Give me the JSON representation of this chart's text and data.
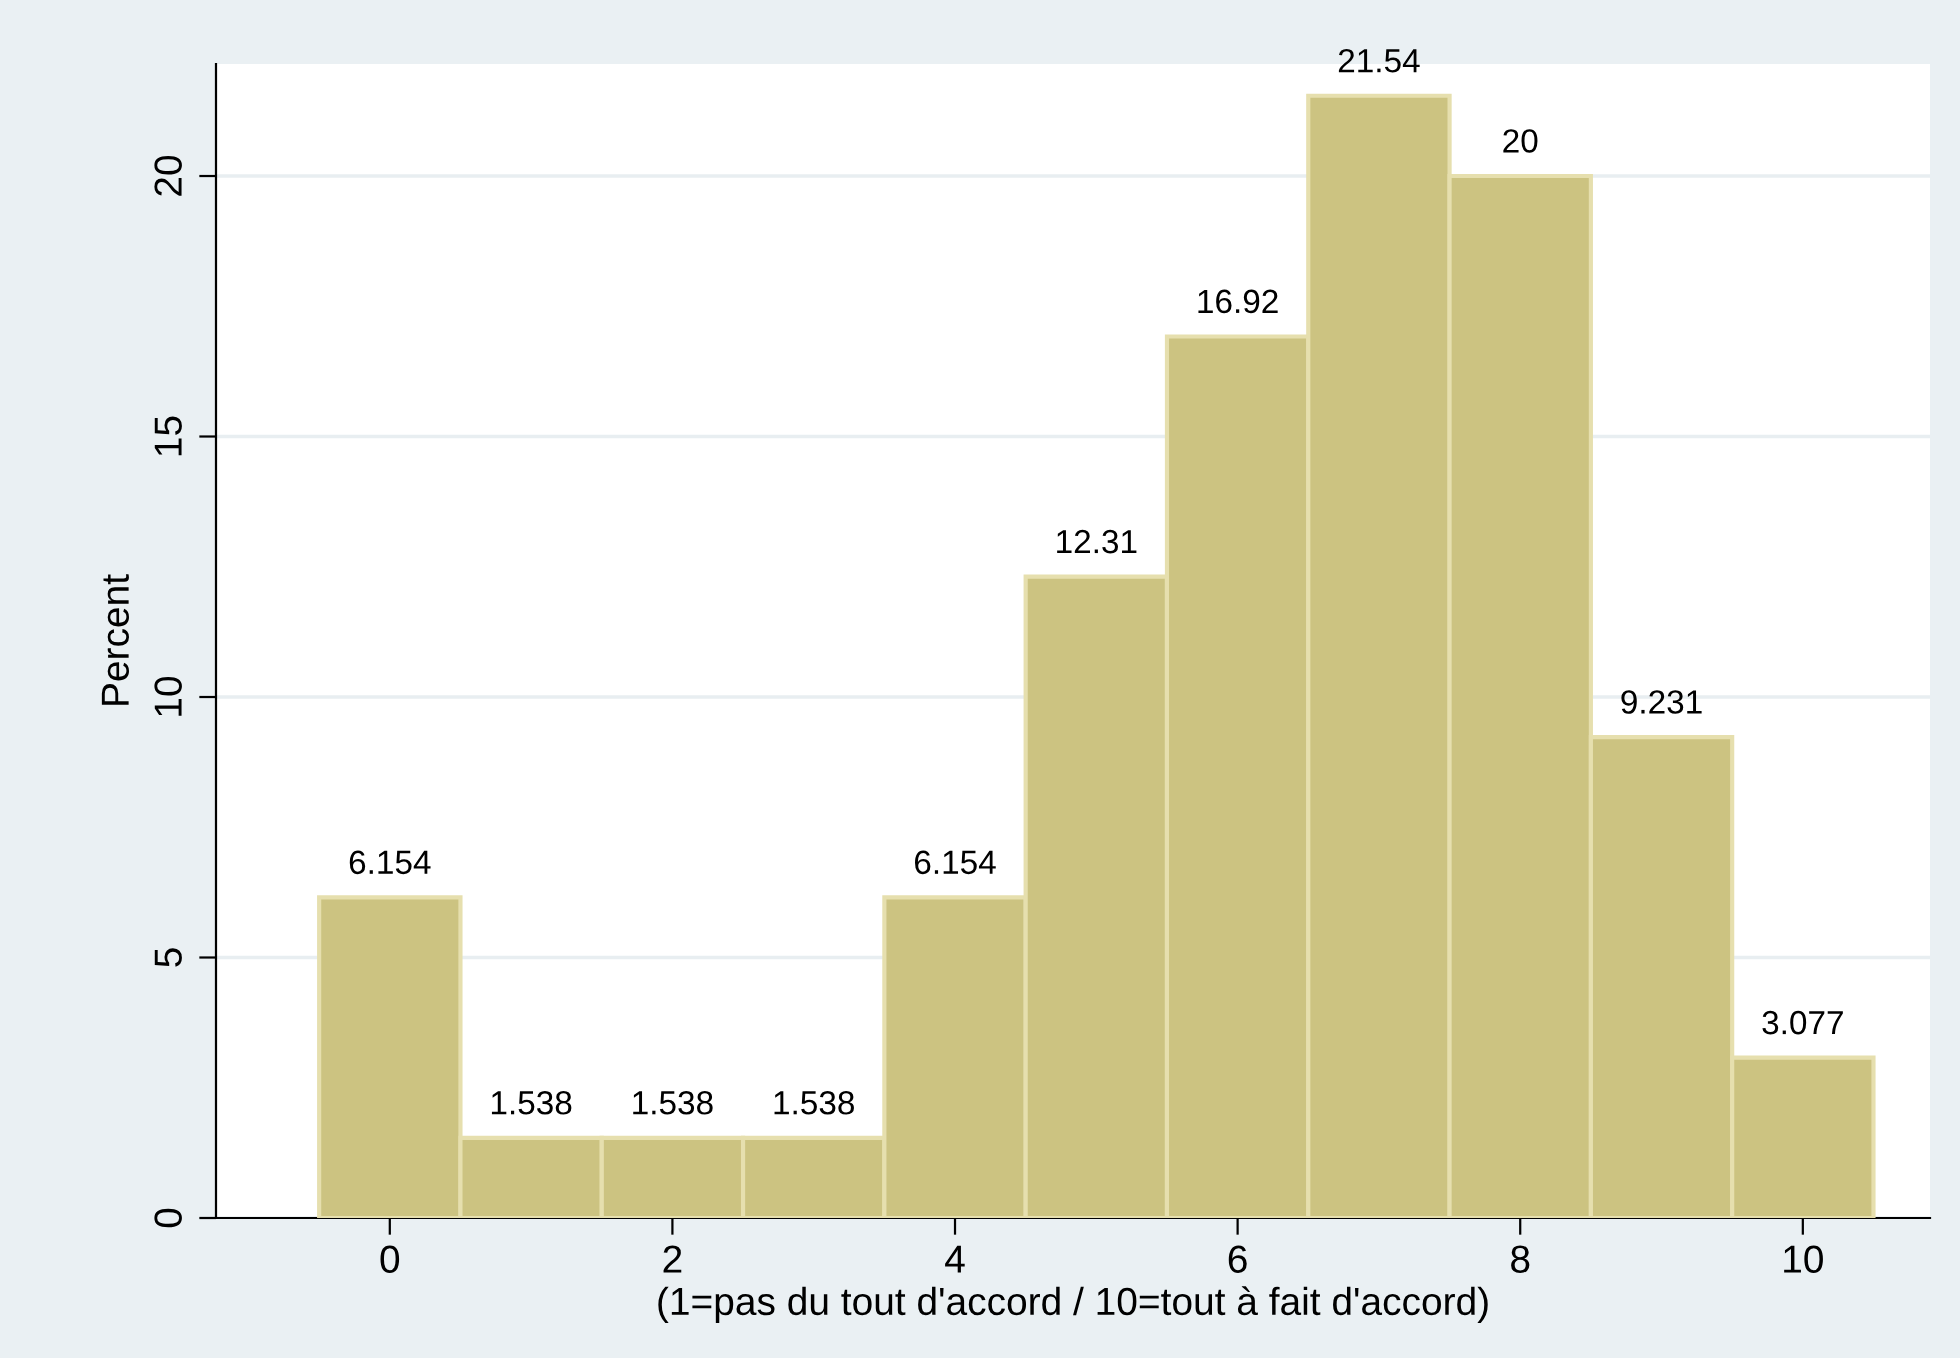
{
  "chart_data": {
    "type": "histogram",
    "xlabel": "(1=pas du tout d'accord / 10=tout à fait d'accord)",
    "ylabel": "Percent",
    "bins": [
      -0.5,
      0.5,
      1.5,
      2.5,
      3.5,
      4.5,
      5.5,
      6.5,
      7.5,
      8.5,
      9.5,
      10.5
    ],
    "values": [
      6.154,
      1.538,
      1.538,
      1.538,
      6.154,
      12.31,
      16.92,
      21.54,
      20,
      9.231,
      3.077
    ],
    "color": "#ccc381",
    "data_labels": true,
    "xlim": [
      -1.23,
      10.9
    ],
    "ylim": [
      0,
      22.15
    ],
    "xticks": [
      0,
      2,
      4,
      6,
      8,
      10
    ],
    "yticks": [
      0,
      5,
      10,
      15,
      20
    ],
    "grid": "y"
  }
}
